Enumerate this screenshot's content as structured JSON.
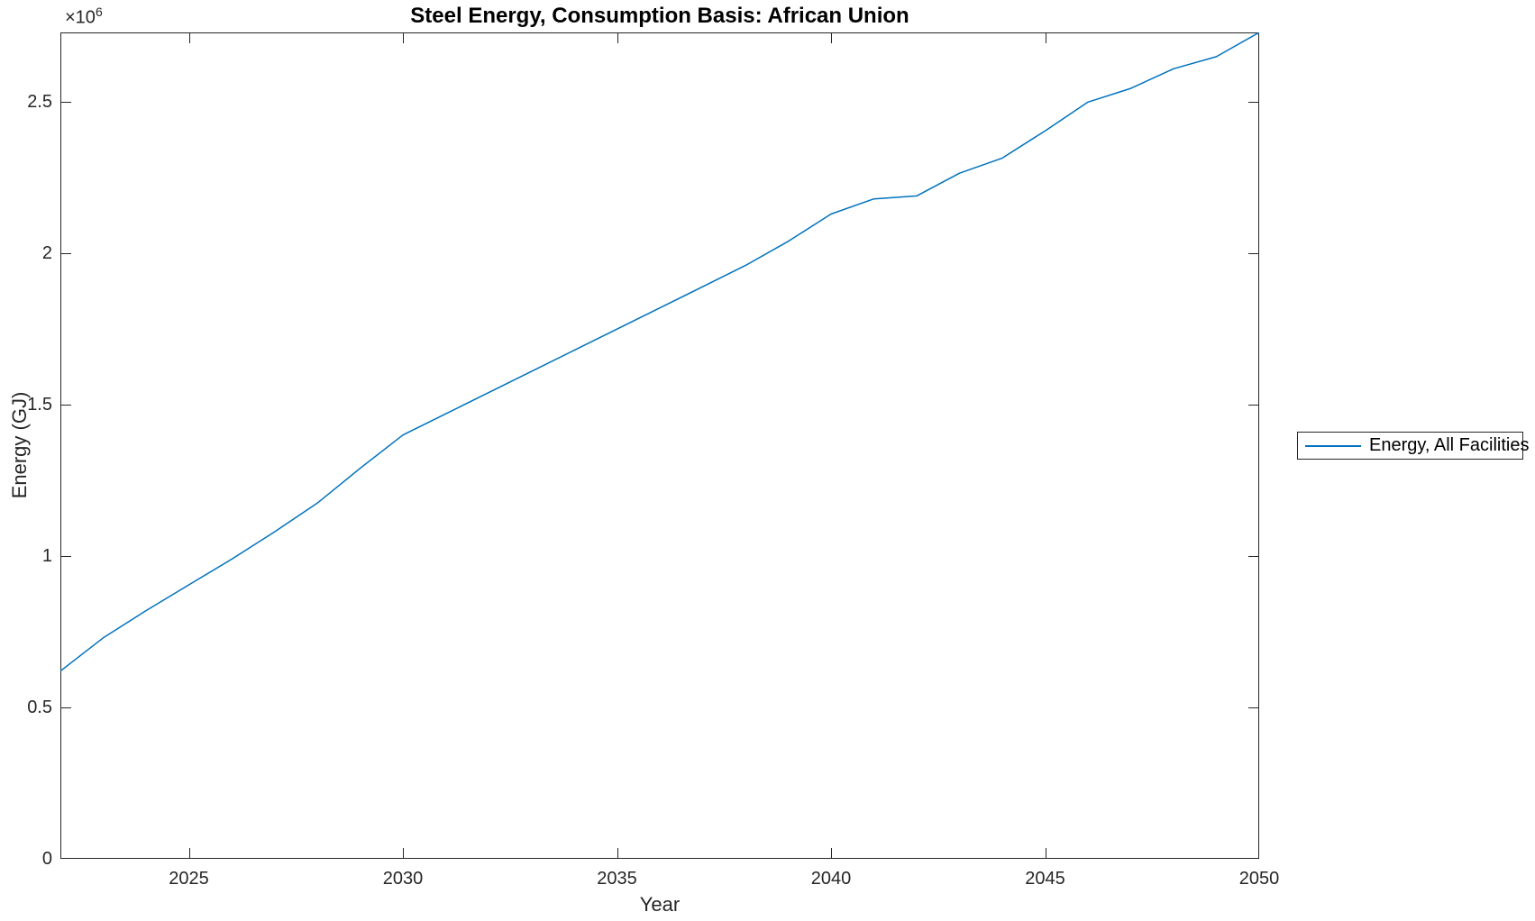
{
  "figure": {
    "title": "Steel Energy, Consumption Basis: African Union",
    "xlabel": "Year",
    "ylabel": "Energy (GJ)",
    "offset_base": "×10",
    "offset_exponent": "6",
    "legend": {
      "entries": [
        {
          "label": "Energy, All Facilities",
          "color": "#0072BD"
        }
      ]
    }
  },
  "colors": {
    "line": "#0072BD",
    "axis": "#262626",
    "background": "#ffffff"
  },
  "chart_data": {
    "type": "line",
    "title": "Steel Energy, Consumption Basis: African Union",
    "xlabel": "Year",
    "ylabel": "Energy (GJ)",
    "y_multiplier_text": "×10^6",
    "grid": false,
    "legend_position": "outside-right",
    "xlim": [
      2022,
      2050
    ],
    "ylim": [
      0,
      2730000
    ],
    "xticks": [
      2025,
      2030,
      2035,
      2040,
      2045,
      2050
    ],
    "xtick_labels": [
      "2025",
      "2030",
      "2035",
      "2040",
      "2045",
      "2050"
    ],
    "yticks": [
      0,
      500000,
      1000000,
      1500000,
      2000000,
      2500000
    ],
    "ytick_labels": [
      "0",
      "0.5",
      "1",
      "1.5",
      "2",
      "2.5"
    ],
    "x": [
      2022,
      2023,
      2024,
      2025,
      2026,
      2027,
      2028,
      2029,
      2030,
      2031,
      2032,
      2033,
      2034,
      2035,
      2036,
      2037,
      2038,
      2039,
      2040,
      2041,
      2042,
      2043,
      2044,
      2045,
      2046,
      2047,
      2048,
      2049,
      2050
    ],
    "series": [
      {
        "name": "Energy, All Facilities",
        "color": "#0072BD",
        "values": [
          620000,
          730000,
          820000,
          905000,
          990000,
          1080000,
          1175000,
          1290000,
          1400000,
          1470000,
          1540000,
          1610000,
          1680000,
          1750000,
          1820000,
          1890000,
          1960000,
          2040000,
          2130000,
          2180000,
          2190000,
          2265000,
          2315000,
          2405000,
          2500000,
          2545000,
          2610000,
          2650000,
          2730000
        ]
      }
    ]
  }
}
